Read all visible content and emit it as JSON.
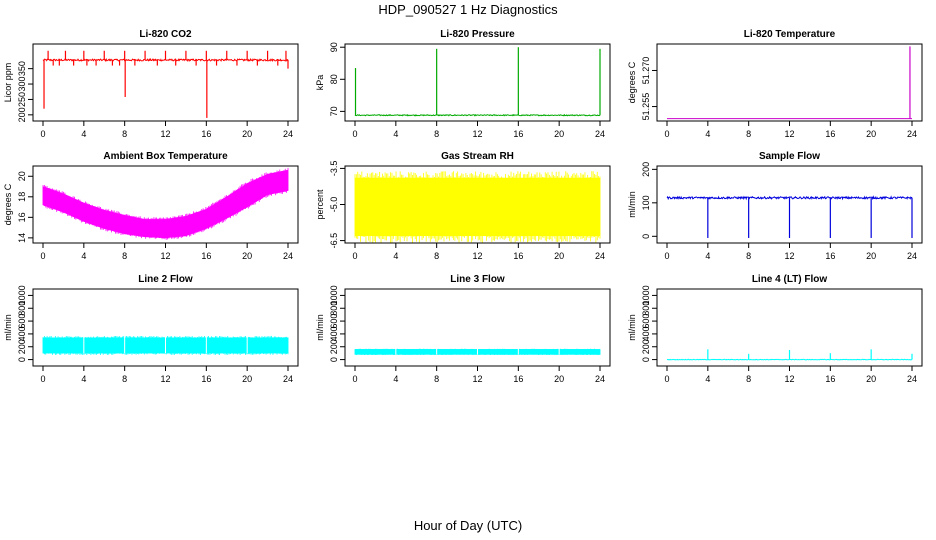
{
  "title": "HDP_090527  1 Hz Diagnostics",
  "xlabel": "Hour of Day (UTC)",
  "chart_data": [
    {
      "type": "line",
      "title": "Li-820 CO2",
      "ylabel": "Licor ppm",
      "color": "#ff0000",
      "xlim": [
        0,
        24
      ],
      "ylim": [
        180,
        430
      ],
      "xticks": [
        "0",
        "4",
        "8",
        "12",
        "16",
        "20",
        "24"
      ],
      "yticks": [
        {
          "v": 200,
          "label": "200"
        },
        {
          "v": 250,
          "label": "250"
        },
        {
          "v": 300,
          "label": "300"
        },
        {
          "v": 350,
          "label": "350"
        }
      ],
      "series": [
        {
          "baseline": 378,
          "noise": 3,
          "spikes": [
            {
              "x": 0.1,
              "y": 220
            },
            {
              "x": 0.5,
              "y": 408
            },
            {
              "x": 1.0,
              "y": 360
            },
            {
              "x": 1.6,
              "y": 360
            },
            {
              "x": 2.2,
              "y": 408
            },
            {
              "x": 3.0,
              "y": 360
            },
            {
              "x": 4.0,
              "y": 408
            },
            {
              "x": 4.3,
              "y": 360
            },
            {
              "x": 5.2,
              "y": 360
            },
            {
              "x": 6.0,
              "y": 408
            },
            {
              "x": 6.8,
              "y": 360
            },
            {
              "x": 7.5,
              "y": 360
            },
            {
              "x": 8.0,
              "y": 408
            },
            {
              "x": 8.05,
              "y": 258
            },
            {
              "x": 9.0,
              "y": 360
            },
            {
              "x": 10.0,
              "y": 408
            },
            {
              "x": 11.2,
              "y": 360
            },
            {
              "x": 12.0,
              "y": 408
            },
            {
              "x": 13.0,
              "y": 360
            },
            {
              "x": 14.0,
              "y": 408
            },
            {
              "x": 15.0,
              "y": 360
            },
            {
              "x": 16.0,
              "y": 408
            },
            {
              "x": 16.05,
              "y": 190
            },
            {
              "x": 17.0,
              "y": 360
            },
            {
              "x": 18.0,
              "y": 408
            },
            {
              "x": 19.0,
              "y": 360
            },
            {
              "x": 20.0,
              "y": 408
            },
            {
              "x": 21.0,
              "y": 360
            },
            {
              "x": 22.0,
              "y": 408
            },
            {
              "x": 23.0,
              "y": 360
            },
            {
              "x": 23.8,
              "y": 408
            },
            {
              "x": 24.0,
              "y": 350
            }
          ]
        }
      ]
    },
    {
      "type": "line",
      "title": "Li-820 Pressure",
      "ylabel": "kPa",
      "color": "#00aa00",
      "xlim": [
        0,
        24
      ],
      "ylim": [
        67,
        91
      ],
      "xticks": [
        "0",
        "4",
        "8",
        "12",
        "16",
        "20",
        "24"
      ],
      "yticks": [
        {
          "v": 70,
          "label": "70"
        },
        {
          "v": 80,
          "label": "80"
        },
        {
          "v": 90,
          "label": "90"
        }
      ],
      "series": [
        {
          "baseline": 68.8,
          "noise": 0.15,
          "spikes": [
            {
              "x": 0.05,
              "y": 83.5
            },
            {
              "x": 8.0,
              "y": 89.5
            },
            {
              "x": 16.0,
              "y": 90
            },
            {
              "x": 24.0,
              "y": 89.5
            }
          ]
        }
      ]
    },
    {
      "type": "line",
      "title": "Li-820 Temperature",
      "ylabel": "degrees C",
      "color": "#cc00cc",
      "xlim": [
        0,
        24
      ],
      "ylim": [
        51.249,
        51.281
      ],
      "xticks": [
        "0",
        "4",
        "8",
        "12",
        "16",
        "20",
        "24"
      ],
      "yticks": [
        {
          "v": 51.255,
          "label": "51.255"
        },
        {
          "v": 51.27,
          "label": "51.270"
        }
      ],
      "series": [
        {
          "baseline": 51.25,
          "noise": 0,
          "spikes": [
            {
              "x": 23.8,
              "y": 51.28
            }
          ]
        }
      ]
    },
    {
      "type": "line",
      "title": "Ambient Box Temperature",
      "ylabel": "degrees C",
      "color": "#ff00ff",
      "xlim": [
        0,
        24
      ],
      "ylim": [
        13.5,
        21
      ],
      "xticks": [
        "0",
        "4",
        "8",
        "12",
        "16",
        "20",
        "24"
      ],
      "yticks": [
        {
          "v": 14,
          "label": "14"
        },
        {
          "v": 16,
          "label": "16"
        },
        {
          "v": 18,
          "label": "18"
        },
        {
          "v": 20,
          "label": "20"
        }
      ],
      "series": [
        {
          "band": [
            {
              "x": 0,
              "lo": 17.2,
              "hi": 19.0
            },
            {
              "x": 2,
              "lo": 16.5,
              "hi": 18.3
            },
            {
              "x": 4,
              "lo": 15.6,
              "hi": 17.4
            },
            {
              "x": 6,
              "lo": 14.9,
              "hi": 16.7
            },
            {
              "x": 8,
              "lo": 14.4,
              "hi": 16.2
            },
            {
              "x": 10,
              "lo": 14.1,
              "hi": 15.8
            },
            {
              "x": 12,
              "lo": 14.0,
              "hi": 15.8
            },
            {
              "x": 14,
              "lo": 14.2,
              "hi": 16.1
            },
            {
              "x": 16,
              "lo": 14.9,
              "hi": 16.8
            },
            {
              "x": 18,
              "lo": 15.9,
              "hi": 18.0
            },
            {
              "x": 20,
              "lo": 17.0,
              "hi": 19.3
            },
            {
              "x": 22,
              "lo": 18.2,
              "hi": 20.2
            },
            {
              "x": 24,
              "lo": 18.6,
              "hi": 20.6
            }
          ]
        }
      ]
    },
    {
      "type": "line",
      "title": "Gas Stream RH",
      "ylabel": "percent",
      "color": "#ffff00",
      "xlim": [
        0,
        24
      ],
      "ylim": [
        -6.6,
        -3.4
      ],
      "xticks": [
        "0",
        "4",
        "8",
        "12",
        "16",
        "20",
        "24"
      ],
      "yticks": [
        {
          "v": -6.5,
          "label": "-6.5"
        },
        {
          "v": -5.0,
          "label": "-5.0"
        },
        {
          "v": -3.5,
          "label": "-3.5"
        }
      ],
      "series": [
        {
          "band": [
            {
              "x": 0,
              "lo": -6.3,
              "hi": -3.9
            },
            {
              "x": 24,
              "lo": -6.3,
              "hi": -3.9
            }
          ]
        }
      ]
    },
    {
      "type": "line",
      "title": "Sample Flow",
      "ylabel": "ml/min",
      "color": "#0000dd",
      "xlim": [
        0,
        24
      ],
      "ylim": [
        -20,
        210
      ],
      "xticks": [
        "0",
        "4",
        "8",
        "12",
        "16",
        "20",
        "24"
      ],
      "yticks": [
        {
          "v": 0,
          "label": "0"
        },
        {
          "v": 100,
          "label": "100"
        },
        {
          "v": 200,
          "label": "200"
        }
      ],
      "series": [
        {
          "baseline": 115,
          "noise": 3,
          "spikes": [
            {
              "x": 4.0,
              "y": -5
            },
            {
              "x": 8.0,
              "y": -5
            },
            {
              "x": 12.0,
              "y": -5
            },
            {
              "x": 16.0,
              "y": -5
            },
            {
              "x": 20.0,
              "y": -5
            },
            {
              "x": 24.0,
              "y": -5
            }
          ]
        }
      ]
    },
    {
      "type": "line",
      "title": "Line 2 Flow",
      "ylabel": "ml/min",
      "color": "#00ffff",
      "xlim": [
        0,
        24
      ],
      "ylim": [
        -100,
        1100
      ],
      "xticks": [
        "0",
        "4",
        "8",
        "12",
        "16",
        "20",
        "24"
      ],
      "yticks": [
        {
          "v": 0,
          "label": "0"
        },
        {
          "v": 200,
          "label": "200"
        },
        {
          "v": 400,
          "label": "400"
        },
        {
          "v": 600,
          "label": "600"
        },
        {
          "v": 800,
          "label": "800"
        },
        {
          "v": 1000,
          "label": "1000"
        }
      ],
      "series": [
        {
          "band": [
            {
              "x": 0,
              "lo": 100,
              "hi": 340
            },
            {
              "x": 24,
              "lo": 100,
              "hi": 340
            }
          ],
          "gaps": [
            4.0,
            8.0,
            12.0,
            16.0,
            20.0
          ]
        }
      ]
    },
    {
      "type": "line",
      "title": "Line 3 Flow",
      "ylabel": "ml/min",
      "color": "#00ffff",
      "xlim": [
        0,
        24
      ],
      "ylim": [
        -100,
        1100
      ],
      "xticks": [
        "0",
        "4",
        "8",
        "12",
        "16",
        "20",
        "24"
      ],
      "yticks": [
        {
          "v": 0,
          "label": "0"
        },
        {
          "v": 200,
          "label": "200"
        },
        {
          "v": 400,
          "label": "400"
        },
        {
          "v": 600,
          "label": "600"
        },
        {
          "v": 800,
          "label": "800"
        },
        {
          "v": 1000,
          "label": "1000"
        }
      ],
      "series": [
        {
          "band": [
            {
              "x": 0,
              "lo": 80,
              "hi": 160
            },
            {
              "x": 24,
              "lo": 80,
              "hi": 160
            }
          ],
          "gaps": [
            4.0,
            8.0,
            12.0,
            16.0,
            20.0
          ]
        }
      ]
    },
    {
      "type": "line",
      "title": "Line 4 (LT) Flow",
      "ylabel": "ml/min",
      "color": "#00ffff",
      "xlim": [
        0,
        24
      ],
      "ylim": [
        -100,
        1100
      ],
      "xticks": [
        "0",
        "4",
        "8",
        "12",
        "16",
        "20",
        "24"
      ],
      "yticks": [
        {
          "v": 0,
          "label": "0"
        },
        {
          "v": 200,
          "label": "200"
        },
        {
          "v": 400,
          "label": "400"
        },
        {
          "v": 600,
          "label": "600"
        },
        {
          "v": 800,
          "label": "800"
        },
        {
          "v": 1000,
          "label": "1000"
        }
      ],
      "series": [
        {
          "baseline": 0,
          "noise": 4,
          "spikes": [
            {
              "x": 4.0,
              "y": 160
            },
            {
              "x": 8.0,
              "y": 90
            },
            {
              "x": 12.0,
              "y": 150
            },
            {
              "x": 16.0,
              "y": 100
            },
            {
              "x": 20.0,
              "y": 160
            },
            {
              "x": 24.0,
              "y": 90
            }
          ]
        }
      ]
    }
  ]
}
